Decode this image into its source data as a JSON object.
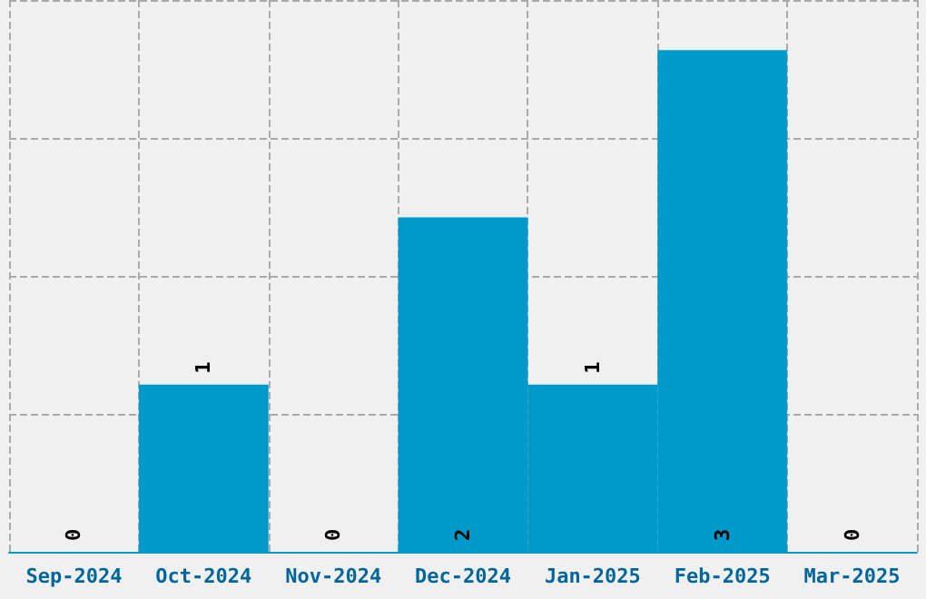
{
  "chart_data": {
    "type": "bar",
    "categories": [
      "Sep-2024",
      "Oct-2024",
      "Nov-2024",
      "Dec-2024",
      "Jan-2025",
      "Feb-2025",
      "Mar-2025"
    ],
    "values": [
      0,
      1,
      0,
      2,
      1,
      3,
      0
    ],
    "color": "#0099cc",
    "data_labels": true,
    "grid": true,
    "tick_labels": "x",
    "ylim": [
      0,
      3.3
    ],
    "yticks": [
      {
        "value": 0,
        "label": null
      },
      {
        "value": 0.825,
        "label": null
      },
      {
        "value": 1.65,
        "label": null
      },
      {
        "value": 2.475,
        "label": null
      },
      {
        "value": 3.3,
        "label": null
      }
    ]
  }
}
